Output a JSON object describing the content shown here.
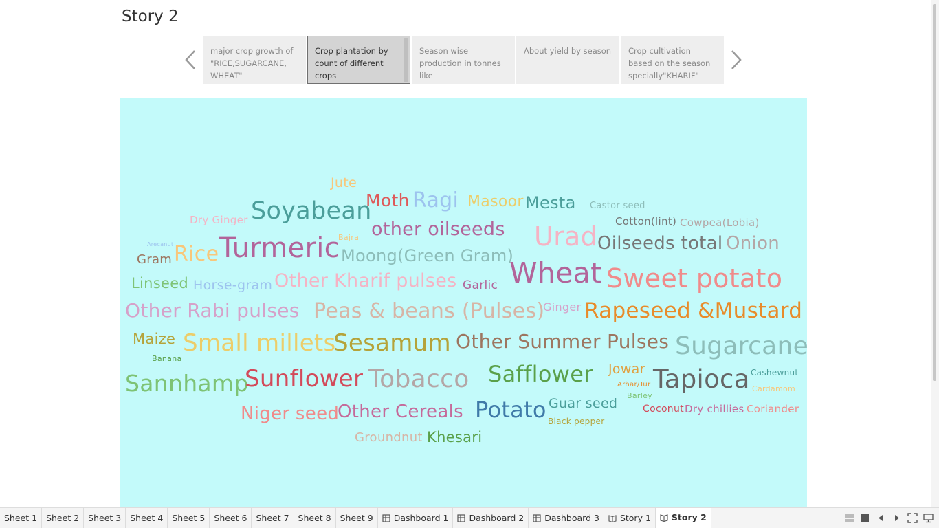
{
  "story": {
    "title": "Story 2",
    "points": [
      {
        "label": "major crop growth of \"RICE,SUGARCANE, WHEAT\"",
        "active": false
      },
      {
        "label": "Crop plantation by count of different crops",
        "active": true
      },
      {
        "label": "Season wise production in tonnes like",
        "active": false
      },
      {
        "label": "About yield by season",
        "active": false
      },
      {
        "label": "Crop cultivation based on the season specially\"KHARIF\"",
        "active": false
      }
    ]
  },
  "icons": {
    "prev": "chevron-left-icon",
    "next": "chevron-right-icon"
  },
  "canvas": {
    "background": "#c3fafa"
  },
  "wordcloud": [
    {
      "text": "Jute",
      "color": "#f8c77b"
    },
    {
      "text": "Moth",
      "color": "#de5a5a"
    },
    {
      "text": "Ragi",
      "color": "#9dc3ee"
    },
    {
      "text": "Masoor",
      "color": "#eccd6a"
    },
    {
      "text": "Mesta",
      "color": "#4b9e9a"
    },
    {
      "text": "Castor seed",
      "color": "#8dbdb9"
    },
    {
      "text": "Dry Ginger",
      "color": "#f5b3c4"
    },
    {
      "text": "Soyabean",
      "color": "#4b9e9a"
    },
    {
      "text": "other oilseeds",
      "color": "#b2649a"
    },
    {
      "text": "Cotton(lint)",
      "color": "#777777"
    },
    {
      "text": "Cowpea(Lobia)",
      "color": "#b4a6a6"
    },
    {
      "text": "Arecanut",
      "color": "#9dc3ee"
    },
    {
      "text": "Bajra",
      "color": "#f8c77b"
    },
    {
      "text": "Urad",
      "color": "#f5b3c4"
    },
    {
      "text": "Gram",
      "color": "#9d7660"
    },
    {
      "text": "Rice",
      "color": "#f8c77b"
    },
    {
      "text": "Turmeric",
      "color": "#b2649a"
    },
    {
      "text": "Moong(Green Gram)",
      "color": "#8dbdb9"
    },
    {
      "text": "Oilseeds total",
      "color": "#777777"
    },
    {
      "text": "Onion",
      "color": "#b4a6a6"
    },
    {
      "text": "Wheat",
      "color": "#b2649a"
    },
    {
      "text": "Linseed",
      "color": "#7ec375"
    },
    {
      "text": "Horse-gram",
      "color": "#9dc3ee"
    },
    {
      "text": "Other Kharif pulses",
      "color": "#f5b3c4"
    },
    {
      "text": "Garlic",
      "color": "#b2649a"
    },
    {
      "text": "Sweet potato",
      "color": "#f08b8b"
    },
    {
      "text": "Other Rabi pulses",
      "color": "#d6a1c9"
    },
    {
      "text": "Peas & beans (Pulses)",
      "color": "#d7b5a6"
    },
    {
      "text": "Ginger",
      "color": "#d6a1c9"
    },
    {
      "text": "Rapeseed &Mustard",
      "color": "#e88b2a"
    },
    {
      "text": "Maize",
      "color": "#b5a33a"
    },
    {
      "text": "Small millets",
      "color": "#eccd6a"
    },
    {
      "text": "Sesamum",
      "color": "#b5a33a"
    },
    {
      "text": "Other Summer Pulses",
      "color": "#9d7660"
    },
    {
      "text": "Sugarcane",
      "color": "#8dbdb9"
    },
    {
      "text": "Banana",
      "color": "#5aa04a"
    },
    {
      "text": "Jowar",
      "color": "#e0a040"
    },
    {
      "text": "Cashewnut",
      "color": "#4b9e9a"
    },
    {
      "text": "Sannhamp",
      "color": "#7ec375"
    },
    {
      "text": "Sunflower",
      "color": "#d34a5a"
    },
    {
      "text": "Tobacco",
      "color": "#b4a6a6"
    },
    {
      "text": "Safflower",
      "color": "#5aa04a"
    },
    {
      "text": "Arhar/Tur",
      "color": "#e88b2a"
    },
    {
      "text": "Tapioca",
      "color": "#666666"
    },
    {
      "text": "Cardamom",
      "color": "#f8c77b"
    },
    {
      "text": "Barley",
      "color": "#7ec375"
    },
    {
      "text": "Niger seed",
      "color": "#f08b8b"
    },
    {
      "text": "Other Cereals",
      "color": "#c56a9a"
    },
    {
      "text": "Potato",
      "color": "#3f7aa8"
    },
    {
      "text": "Guar seed",
      "color": "#4b9e9a"
    },
    {
      "text": "Coconut",
      "color": "#d34a5a"
    },
    {
      "text": "Dry chillies",
      "color": "#c56a9a"
    },
    {
      "text": "Coriander",
      "color": "#f08b8b"
    },
    {
      "text": "Black pepper",
      "color": "#b5a33a"
    },
    {
      "text": "Groundnut",
      "color": "#d7b5a6"
    },
    {
      "text": "Khesari",
      "color": "#5aa04a"
    }
  ],
  "tabs": [
    {
      "label": "Sheet 1",
      "type": "sheet",
      "active": false
    },
    {
      "label": "Sheet 2",
      "type": "sheet",
      "active": false
    },
    {
      "label": "Sheet 3",
      "type": "sheet",
      "active": false
    },
    {
      "label": "Sheet 4",
      "type": "sheet",
      "active": false
    },
    {
      "label": "Sheet 5",
      "type": "sheet",
      "active": false
    },
    {
      "label": "Sheet 6",
      "type": "sheet",
      "active": false
    },
    {
      "label": "Sheet 7",
      "type": "sheet",
      "active": false
    },
    {
      "label": "Sheet 8",
      "type": "sheet",
      "active": false
    },
    {
      "label": "Sheet 9",
      "type": "sheet",
      "active": false
    },
    {
      "label": "Dashboard 1",
      "type": "dashboard",
      "active": false
    },
    {
      "label": "Dashboard 2",
      "type": "dashboard",
      "active": false
    },
    {
      "label": "Dashboard 3",
      "type": "dashboard",
      "active": false
    },
    {
      "label": "Story 1",
      "type": "story",
      "active": false
    },
    {
      "label": "Story 2",
      "type": "story",
      "active": true
    }
  ],
  "controls": [
    {
      "name": "film-strip-icon"
    },
    {
      "name": "single-sheet-icon"
    },
    {
      "name": "previous-sheet-icon"
    },
    {
      "name": "next-sheet-icon"
    },
    {
      "name": "fit-screen-icon"
    },
    {
      "name": "presentation-mode-icon"
    }
  ]
}
